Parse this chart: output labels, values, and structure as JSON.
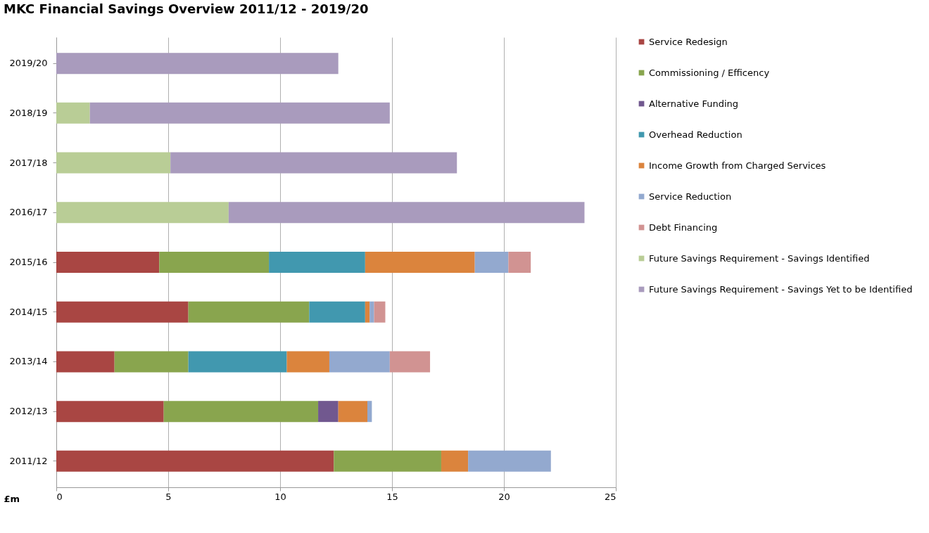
{
  "chart_data": {
    "type": "bar",
    "orientation": "horizontal",
    "stacked": true,
    "title": "MKC Financial Savings Overview 2011/12 - 2019/20",
    "xlabel": "£m",
    "categories": [
      "2019/20",
      "2018/19",
      "2017/18",
      "2016/17",
      "2015/16",
      "2014/15",
      "2013/14",
      "2012/13",
      "2011/12"
    ],
    "series": [
      {
        "name": "Service Redesign",
        "color": "#a94643",
        "values": [
          null,
          null,
          null,
          null,
          4.6,
          5.9,
          2.6,
          4.8,
          12.4
        ]
      },
      {
        "name": "Commissioning / Efficency",
        "color": "#89a54e",
        "values": [
          null,
          null,
          null,
          null,
          4.9,
          5.4,
          3.3,
          6.9,
          4.8
        ]
      },
      {
        "name": "Alternative Funding",
        "color": "#71588f",
        "values": [
          null,
          null,
          null,
          null,
          null,
          null,
          null,
          0.9,
          null
        ]
      },
      {
        "name": "Overhead Reduction",
        "color": "#4198af",
        "values": [
          null,
          null,
          null,
          null,
          4.3,
          2.5,
          4.4,
          null,
          null
        ]
      },
      {
        "name": "Income Growth from Charged Services",
        "color": "#db843d",
        "values": [
          null,
          null,
          null,
          null,
          4.9,
          0.2,
          1.9,
          1.3,
          1.2
        ]
      },
      {
        "name": "Service Reduction",
        "color": "#93a9cf",
        "values": [
          null,
          null,
          null,
          null,
          1.5,
          0.2,
          2.7,
          0.2,
          3.7
        ]
      },
      {
        "name": "Debt Financing",
        "color": "#d19392",
        "values": [
          null,
          null,
          null,
          null,
          1.0,
          0.5,
          1.8,
          null,
          null
        ]
      },
      {
        "name": "Future Savings Requirement - Savings Identified",
        "color": "#b9cd96",
        "values": [
          null,
          1.5,
          5.1,
          7.7,
          null,
          null,
          null,
          null,
          null
        ]
      },
      {
        "name": "Future Savings Requirement - Savings Yet to be Identified",
        "color": "#a99bbd",
        "values": [
          12.6,
          13.4,
          12.8,
          15.9,
          null,
          null,
          null,
          null,
          null
        ]
      }
    ],
    "xlim": [
      0,
      25
    ],
    "xticks": [
      0,
      5,
      10,
      15,
      20,
      25
    ],
    "grid": "x",
    "legend": "right"
  }
}
